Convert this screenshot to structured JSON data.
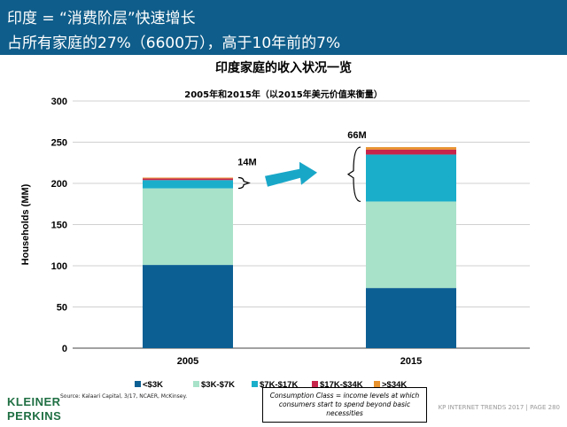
{
  "header": {
    "line1": "印度 = “消费阶层”快速增长",
    "line2": "占所有家庭的27%（6600万），高于10年前的7%"
  },
  "chart_data": {
    "type": "bar",
    "stacked": true,
    "title": "印度家庭的收入状况一览",
    "subtitle": "2005年和2015年（以2015年美元价值来衡量）",
    "ylabel": "Households (MM)",
    "xlabel": "",
    "categories": [
      "2005",
      "2015"
    ],
    "ylim": [
      0,
      300
    ],
    "yticks": [
      0,
      50,
      100,
      150,
      200,
      250,
      300
    ],
    "grid": true,
    "legend_position": "bottom",
    "series": [
      {
        "name": "<$3K",
        "color": "#0c5f93",
        "values": [
          101,
          73
        ]
      },
      {
        "name": "$3K-$7K",
        "color": "#a8e2c9",
        "values": [
          93,
          105
        ]
      },
      {
        "name": "$7K-$17K",
        "color": "#1aaecb",
        "values": [
          10,
          57
        ]
      },
      {
        "name": "$17K-$34K",
        "color": "#c8254b",
        "values": [
          2,
          6
        ]
      },
      {
        "name": ">$34K",
        "color": "#e8922d",
        "values": [
          1,
          3
        ]
      }
    ],
    "annotations": [
      {
        "text": "14M",
        "category": "2005"
      },
      {
        "text": "66M",
        "category": "2015"
      }
    ]
  },
  "note": "Consumption Class = income levels at which consumers start to spend beyond basic necessities",
  "source": "Source: Kalaari Capital, 3/17, NCAER, McKinsey.",
  "logo": {
    "line1": "KLEINER",
    "line2": "PERKINS"
  },
  "footer": "KP INTERNET TRENDS 2017  |  PAGE 280"
}
